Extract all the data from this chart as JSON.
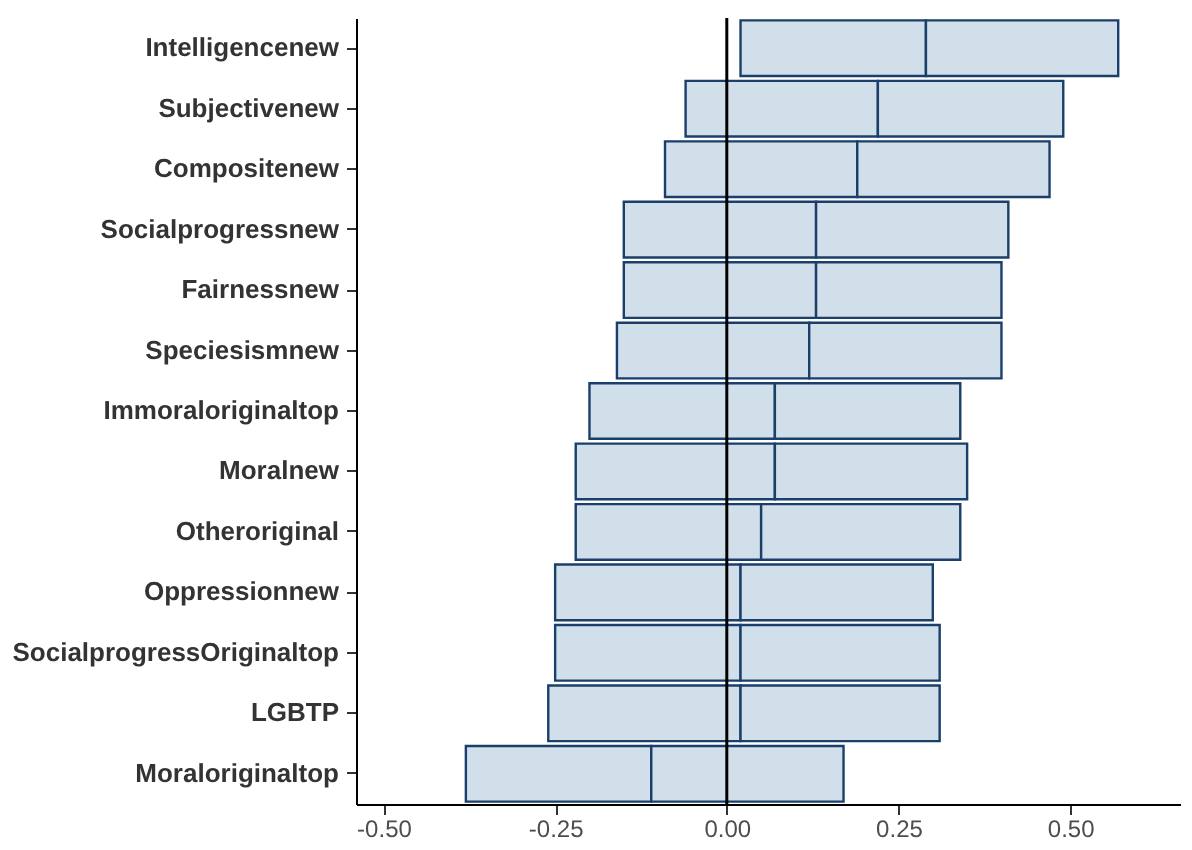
{
  "chart_data": {
    "type": "bar",
    "orientation": "horizontal",
    "categories": [
      "Intelligencenew",
      "Subjectivenew",
      "Compositenew",
      "Socialprogressnew",
      "Fairnessnew",
      "Speciesismnew",
      "Immoraloriginaltop",
      "Moralnew",
      "Otheroriginal",
      "Oppressionnew",
      "SocialprogressOriginaltop",
      "LGBTP",
      "Moraloriginaltop"
    ],
    "series": [
      {
        "type": "bar",
        "color": "#d0dfea",
        "base": [
          0.02,
          -0.06,
          -0.09,
          -0.15,
          -0.15,
          -0.16,
          -0.2,
          -0.22,
          -0.22,
          -0.25,
          -0.25,
          -0.26,
          -0.38
        ],
        "values": [
          0.27,
          0.28,
          0.28,
          0.28,
          0.28,
          0.28,
          0.27,
          0.29,
          0.27,
          0.27,
          0.27,
          0.28,
          0.27
        ]
      },
      {
        "type": "bar",
        "color": "#d0dfea",
        "base": [
          0.29,
          0.22,
          0.19,
          0.13,
          0.13,
          0.12,
          0.07,
          0.07,
          0.05,
          0.02,
          0.02,
          0.02,
          -0.11
        ],
        "values": [
          0.28,
          0.27,
          0.28,
          0.28,
          0.27,
          0.28,
          0.27,
          0.28,
          0.29,
          0.28,
          0.29,
          0.29,
          0.28
        ]
      }
    ],
    "xlim": [
      -0.54,
      0.66
    ],
    "xticks": [
      {
        "value": -0.5,
        "label": "-0.50"
      },
      {
        "value": -0.25,
        "label": "-0.25"
      },
      {
        "value": 0,
        "label": "0.00"
      },
      {
        "value": 0.25,
        "label": "0.25"
      },
      {
        "value": 0.5,
        "label": "0.50"
      }
    ],
    "ref_lines": [
      {
        "axis": "x",
        "value": 0,
        "color": "#000000"
      }
    ],
    "grid": false
  }
}
